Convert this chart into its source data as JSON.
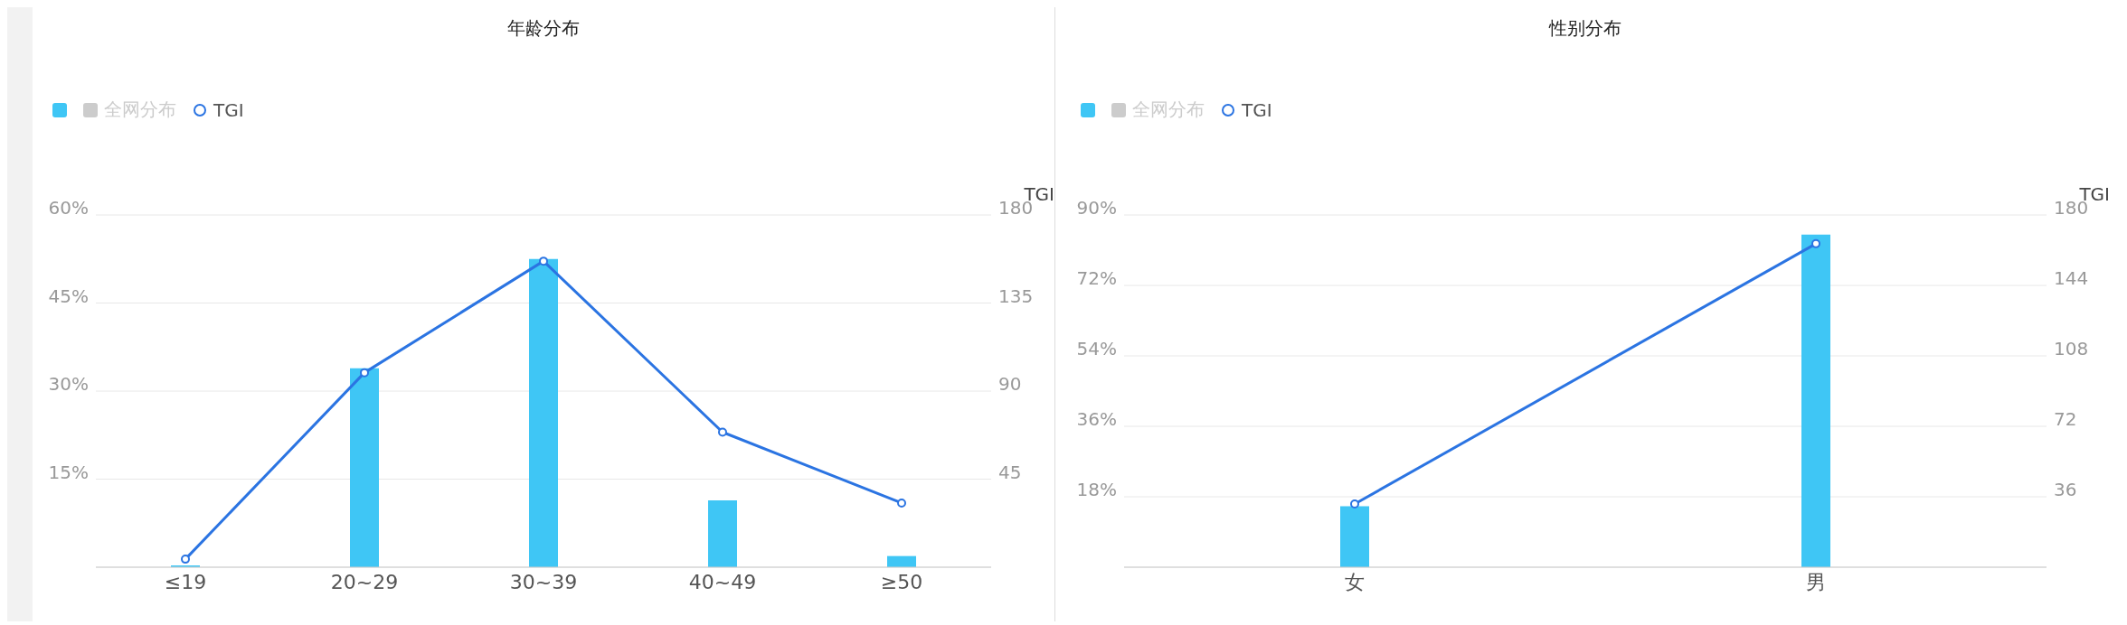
{
  "chart_data": [
    {
      "type": "bar",
      "title": "年龄分布",
      "categories": [
        "≤19",
        "20~29",
        "30~39",
        "40~49",
        "≥50"
      ],
      "legend": "top left",
      "grid": "y",
      "y2label": "TGI",
      "marker": "circle",
      "ylim": [
        0,
        60
      ],
      "yticks": [
        {
          "value": 0,
          "label": null
        },
        {
          "value": 15,
          "label": "15%"
        },
        {
          "value": 30,
          "label": "30%"
        },
        {
          "value": 45,
          "label": "45%"
        },
        {
          "value": 60,
          "label": "60%"
        }
      ],
      "y2lim": [
        0,
        180
      ],
      "y2ticks": [
        45,
        90,
        135,
        180
      ],
      "series": [
        {
          "color": "#3fc6f5",
          "values": [
            0.3,
            33.9,
            52.5,
            11.4,
            1.9
          ]
        },
        {
          "name": "全网分布",
          "color": "#cccccc",
          "values": [
            null,
            null,
            null,
            null,
            null
          ]
        },
        {
          "type": "line",
          "name": "TGI",
          "color": "#2b74e2",
          "axis": "y2",
          "values": [
            4.1,
            99.4,
            156.4,
            69,
            32.8
          ]
        }
      ]
    },
    {
      "type": "bar",
      "title": "性别分布",
      "categories": [
        "女",
        "男"
      ],
      "legend": "top left",
      "grid": "y",
      "y2label": "TGI",
      "marker": "circle",
      "ylim": [
        0,
        90
      ],
      "yticks": [
        {
          "value": 0,
          "label": null
        },
        {
          "value": 18,
          "label": "18%"
        },
        {
          "value": 36,
          "label": "36%"
        },
        {
          "value": 54,
          "label": "54%"
        },
        {
          "value": 72,
          "label": "72%"
        },
        {
          "value": 90,
          "label": "90%"
        }
      ],
      "y2lim": [
        0,
        180
      ],
      "y2ticks": [
        36,
        72,
        108,
        144,
        180
      ],
      "series": [
        {
          "color": "#3fc6f5",
          "values": [
            15.6,
            85.0
          ]
        },
        {
          "name": "全网分布",
          "color": "#cccccc",
          "values": [
            null,
            null
          ]
        },
        {
          "type": "line",
          "name": "TGI",
          "color": "#2b74e2",
          "axis": "y2",
          "values": [
            32.3,
            165.3
          ]
        }
      ]
    }
  ]
}
